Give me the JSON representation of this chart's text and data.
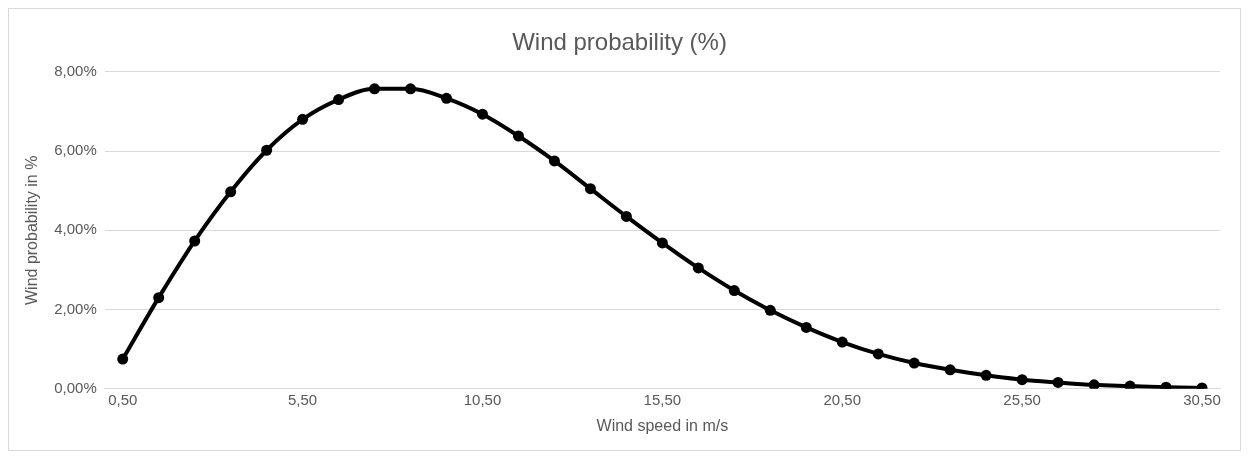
{
  "chart_data": {
    "type": "line",
    "title": "Wind probability (%)",
    "xlabel": "Wind speed in m/s",
    "ylabel": "Wind probability in %",
    "x": [
      0.5,
      1.5,
      2.5,
      3.5,
      4.5,
      5.5,
      6.5,
      7.5,
      8.5,
      9.5,
      10.5,
      11.5,
      12.5,
      13.5,
      14.5,
      15.5,
      16.5,
      17.5,
      18.5,
      19.5,
      20.5,
      21.5,
      22.5,
      23.5,
      24.5,
      25.5,
      26.5,
      27.5,
      28.5,
      29.5,
      30.5
    ],
    "series": [
      {
        "color": "#000000",
        "values": [
          0.75,
          2.3,
          3.73,
          4.97,
          6.02,
          6.8,
          7.3,
          7.57,
          7.57,
          7.33,
          6.93,
          6.38,
          5.75,
          5.05,
          4.35,
          3.68,
          3.05,
          2.48,
          1.98,
          1.55,
          1.18,
          0.88,
          0.65,
          0.48,
          0.34,
          0.23,
          0.16,
          0.1,
          0.07,
          0.04,
          0.02
        ]
      }
    ],
    "xlim": [
      0,
      31
    ],
    "xticks": [
      {
        "value": 0.5,
        "label": "0,50"
      },
      {
        "value": 5.5,
        "label": "5,50"
      },
      {
        "value": 10.5,
        "label": "10,50"
      },
      {
        "value": 15.5,
        "label": "15,50"
      },
      {
        "value": 20.5,
        "label": "20,50"
      },
      {
        "value": 25.5,
        "label": "25,50"
      },
      {
        "value": 30.5,
        "label": "30,50"
      }
    ],
    "ylim": [
      0,
      8
    ],
    "yticks": [
      {
        "value": 0,
        "label": "0,00%"
      },
      {
        "value": 2,
        "label": "2,00%"
      },
      {
        "value": 4,
        "label": "4,00%"
      },
      {
        "value": 6,
        "label": "6,00%"
      },
      {
        "value": 8,
        "label": "8,00%"
      }
    ],
    "grid": "y",
    "legend": false,
    "marker": "circle",
    "line_style": "solid"
  }
}
